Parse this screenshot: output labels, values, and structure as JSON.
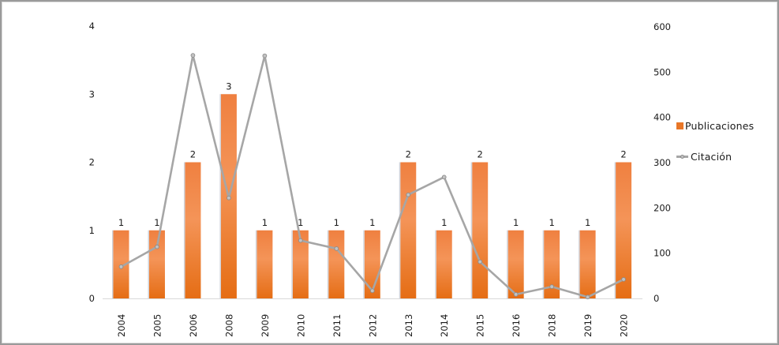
{
  "legend": {
    "publicaciones_label": "Publicaciones",
    "citacion_label": "Citación"
  },
  "colors": {
    "bar_fill_top": "#ef8040",
    "bar_fill_mid": "#f49458",
    "bar_fill_bottom": "#e56d14",
    "bar_edge": "#d0d3da",
    "line": "#a6a6a6",
    "marker_fill": "#c2c2c2",
    "marker_stroke": "#8c8c8c",
    "axis_line": "#d9d9d9",
    "text": "#1a1a1a"
  },
  "chart_data": {
    "type": "bar",
    "subtype": "bar-and-line-combo",
    "title": "",
    "xlabel": "",
    "ylabel_left": "",
    "ylabel_right": "",
    "categories": [
      "2004",
      "2005",
      "2006",
      "2008",
      "2009",
      "2010",
      "2011",
      "2012",
      "2013",
      "2014",
      "2015",
      "2016",
      "2018",
      "2019",
      "2020"
    ],
    "series": [
      {
        "name": "Publicaciones",
        "type": "bar",
        "axis": "left",
        "values": [
          1,
          1,
          2,
          3,
          1,
          1,
          1,
          1,
          2,
          1,
          2,
          1,
          1,
          1,
          2
        ],
        "data_labels": [
          1,
          1,
          2,
          3,
          1,
          1,
          1,
          1,
          2,
          1,
          2,
          1,
          1,
          1,
          2
        ]
      },
      {
        "name": "Citación",
        "type": "line",
        "axis": "right",
        "values": [
          70,
          114,
          537,
          222,
          536,
          128,
          110,
          17,
          229,
          268,
          81,
          9,
          26,
          3,
          42
        ]
      }
    ],
    "left_axis": {
      "ticks": [
        0,
        1,
        2,
        3,
        4
      ],
      "range": [
        0,
        4
      ]
    },
    "right_axis": {
      "ticks": [
        0,
        100,
        200,
        300,
        400,
        500,
        600
      ],
      "range": [
        0,
        600
      ]
    },
    "grid": false,
    "legend_position": "right",
    "x_tick_rotation_deg": -90
  }
}
